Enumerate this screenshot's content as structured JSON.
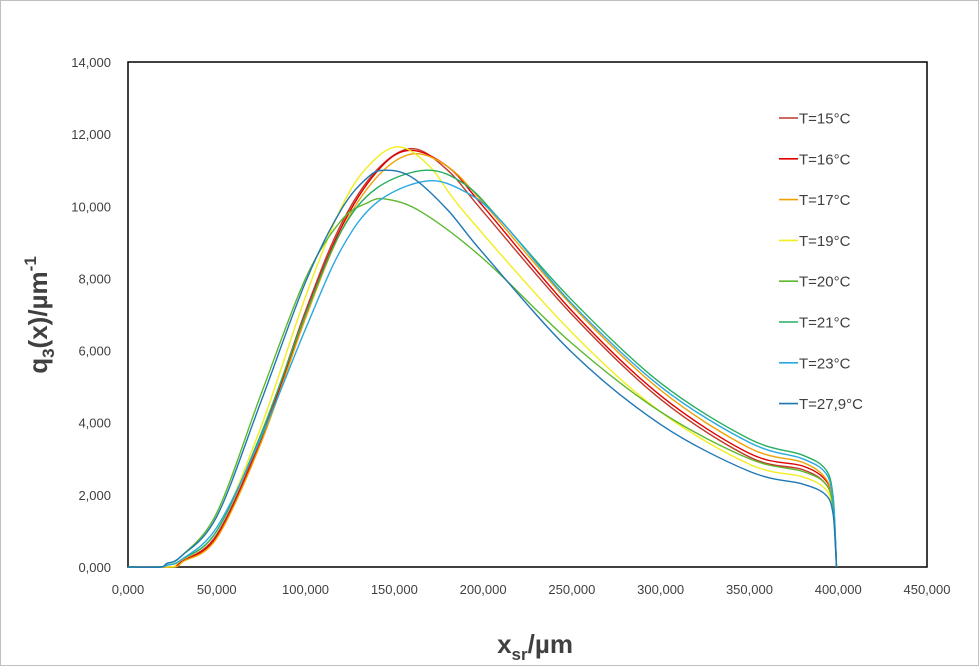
{
  "chart_data": {
    "type": "line",
    "xlabel": {
      "main": "x",
      "sub": "sr",
      "suffix": "/µm"
    },
    "ylabel": {
      "main": "q",
      "sub": "3",
      "mid": "(x)/µm",
      "sup": "-1"
    },
    "xlim": [
      0,
      450
    ],
    "ylim": [
      0,
      14
    ],
    "xticks": [
      0,
      50,
      100,
      150,
      200,
      250,
      300,
      350,
      400,
      450
    ],
    "yticks": [
      0,
      2,
      4,
      6,
      8,
      10,
      12,
      14
    ],
    "xtick_labels": [
      "0,000",
      "50,000",
      "100,000",
      "150,000",
      "200,000",
      "250,000",
      "300,000",
      "350,000",
      "400,000",
      "450,000"
    ],
    "ytick_labels": [
      "0,000",
      "2,000",
      "4,000",
      "6,000",
      "8,000",
      "10,000",
      "12,000",
      "14,000"
    ],
    "grid": false,
    "legend_position": "right",
    "series": [
      {
        "name": "T=15°C",
        "color": "#c0392b",
        "points": [
          [
            0,
            0
          ],
          [
            20,
            0
          ],
          [
            27,
            0.02
          ],
          [
            30,
            0.15
          ],
          [
            50,
            0.9
          ],
          [
            75,
            3.6
          ],
          [
            100,
            7.1
          ],
          [
            120,
            9.5
          ],
          [
            140,
            11.0
          ],
          [
            160,
            11.6
          ],
          [
            180,
            11.0
          ],
          [
            200,
            9.85
          ],
          [
            250,
            7.0
          ],
          [
            300,
            4.65
          ],
          [
            350,
            3.05
          ],
          [
            380,
            2.7
          ],
          [
            393,
            2.3
          ],
          [
            397,
            1.7
          ],
          [
            398.5,
            0.6
          ],
          [
            399,
            0
          ]
        ]
      },
      {
        "name": "T=16°C",
        "color": "#e00000",
        "points": [
          [
            0,
            0
          ],
          [
            20,
            0
          ],
          [
            27,
            0.02
          ],
          [
            30,
            0.15
          ],
          [
            50,
            0.85
          ],
          [
            75,
            3.5
          ],
          [
            100,
            7.0
          ],
          [
            120,
            9.4
          ],
          [
            140,
            10.95
          ],
          [
            158,
            11.55
          ],
          [
            180,
            11.1
          ],
          [
            200,
            10.0
          ],
          [
            250,
            7.1
          ],
          [
            300,
            4.75
          ],
          [
            350,
            3.15
          ],
          [
            380,
            2.8
          ],
          [
            393,
            2.4
          ],
          [
            397,
            1.8
          ],
          [
            398.5,
            0.6
          ],
          [
            399,
            0
          ]
        ]
      },
      {
        "name": "T=17°C",
        "color": "#f0a202",
        "points": [
          [
            0,
            0
          ],
          [
            20,
            0
          ],
          [
            28,
            0.02
          ],
          [
            31,
            0.15
          ],
          [
            50,
            0.8
          ],
          [
            75,
            3.45
          ],
          [
            100,
            6.9
          ],
          [
            120,
            9.3
          ],
          [
            140,
            10.8
          ],
          [
            160,
            11.45
          ],
          [
            180,
            11.1
          ],
          [
            200,
            10.1
          ],
          [
            250,
            7.25
          ],
          [
            300,
            4.9
          ],
          [
            350,
            3.3
          ],
          [
            380,
            2.9
          ],
          [
            393,
            2.45
          ],
          [
            397,
            1.8
          ],
          [
            398.5,
            0.6
          ],
          [
            399,
            0
          ]
        ]
      },
      {
        "name": "T=19°C",
        "color": "#f2ee1d",
        "points": [
          [
            0,
            0
          ],
          [
            20,
            0
          ],
          [
            26,
            0.02
          ],
          [
            29,
            0.15
          ],
          [
            50,
            1.0
          ],
          [
            75,
            3.9
          ],
          [
            100,
            7.5
          ],
          [
            120,
            9.95
          ],
          [
            135,
            11.1
          ],
          [
            152,
            11.65
          ],
          [
            170,
            11.1
          ],
          [
            190,
            9.8
          ],
          [
            250,
            6.5
          ],
          [
            300,
            4.3
          ],
          [
            350,
            2.85
          ],
          [
            380,
            2.5
          ],
          [
            393,
            2.15
          ],
          [
            397,
            1.6
          ],
          [
            398.5,
            0.5
          ],
          [
            399,
            0
          ]
        ]
      },
      {
        "name": "T=20°C",
        "color": "#5cb82e",
        "points": [
          [
            0,
            0
          ],
          [
            18,
            0
          ],
          [
            22,
            0.1
          ],
          [
            30,
            0.3
          ],
          [
            50,
            1.5
          ],
          [
            75,
            4.8
          ],
          [
            100,
            8.0
          ],
          [
            120,
            9.6
          ],
          [
            135,
            10.1
          ],
          [
            145,
            10.2
          ],
          [
            165,
            9.85
          ],
          [
            200,
            8.55
          ],
          [
            250,
            6.2
          ],
          [
            300,
            4.3
          ],
          [
            350,
            3.0
          ],
          [
            380,
            2.65
          ],
          [
            393,
            2.3
          ],
          [
            397,
            1.7
          ],
          [
            398.5,
            0.6
          ],
          [
            399,
            0
          ]
        ]
      },
      {
        "name": "T=21°C",
        "color": "#27ae60",
        "points": [
          [
            0,
            0
          ],
          [
            18,
            0
          ],
          [
            22,
            0.05
          ],
          [
            30,
            0.2
          ],
          [
            50,
            1.0
          ],
          [
            75,
            3.7
          ],
          [
            100,
            7.0
          ],
          [
            120,
            9.3
          ],
          [
            140,
            10.5
          ],
          [
            168,
            11.0
          ],
          [
            190,
            10.6
          ],
          [
            210,
            9.6
          ],
          [
            250,
            7.4
          ],
          [
            300,
            5.1
          ],
          [
            350,
            3.55
          ],
          [
            380,
            3.1
          ],
          [
            393,
            2.7
          ],
          [
            397,
            2.0
          ],
          [
            398.5,
            0.7
          ],
          [
            399,
            0
          ]
        ]
      },
      {
        "name": "T=23°C",
        "color": "#2aa8e0",
        "points": [
          [
            0,
            0
          ],
          [
            18,
            0
          ],
          [
            22,
            0.05
          ],
          [
            30,
            0.2
          ],
          [
            50,
            1.1
          ],
          [
            75,
            3.6
          ],
          [
            100,
            6.6
          ],
          [
            120,
            8.8
          ],
          [
            140,
            10.1
          ],
          [
            168,
            10.7
          ],
          [
            190,
            10.4
          ],
          [
            210,
            9.6
          ],
          [
            250,
            7.3
          ],
          [
            300,
            5.0
          ],
          [
            350,
            3.45
          ],
          [
            380,
            3.0
          ],
          [
            393,
            2.6
          ],
          [
            397,
            1.9
          ],
          [
            398.5,
            0.7
          ],
          [
            399,
            0
          ]
        ]
      },
      {
        "name": "T=27,9°C",
        "color": "#1f77b4",
        "points": [
          [
            0,
            0
          ],
          [
            18,
            0
          ],
          [
            22,
            0.1
          ],
          [
            30,
            0.3
          ],
          [
            50,
            1.4
          ],
          [
            75,
            4.6
          ],
          [
            100,
            7.9
          ],
          [
            120,
            9.9
          ],
          [
            135,
            10.8
          ],
          [
            145,
            11.0
          ],
          [
            160,
            10.8
          ],
          [
            180,
            9.9
          ],
          [
            200,
            8.7
          ],
          [
            250,
            5.95
          ],
          [
            300,
            3.95
          ],
          [
            350,
            2.65
          ],
          [
            380,
            2.3
          ],
          [
            393,
            2.0
          ],
          [
            397,
            1.5
          ],
          [
            398.5,
            0.5
          ],
          [
            399,
            0
          ]
        ]
      }
    ]
  }
}
